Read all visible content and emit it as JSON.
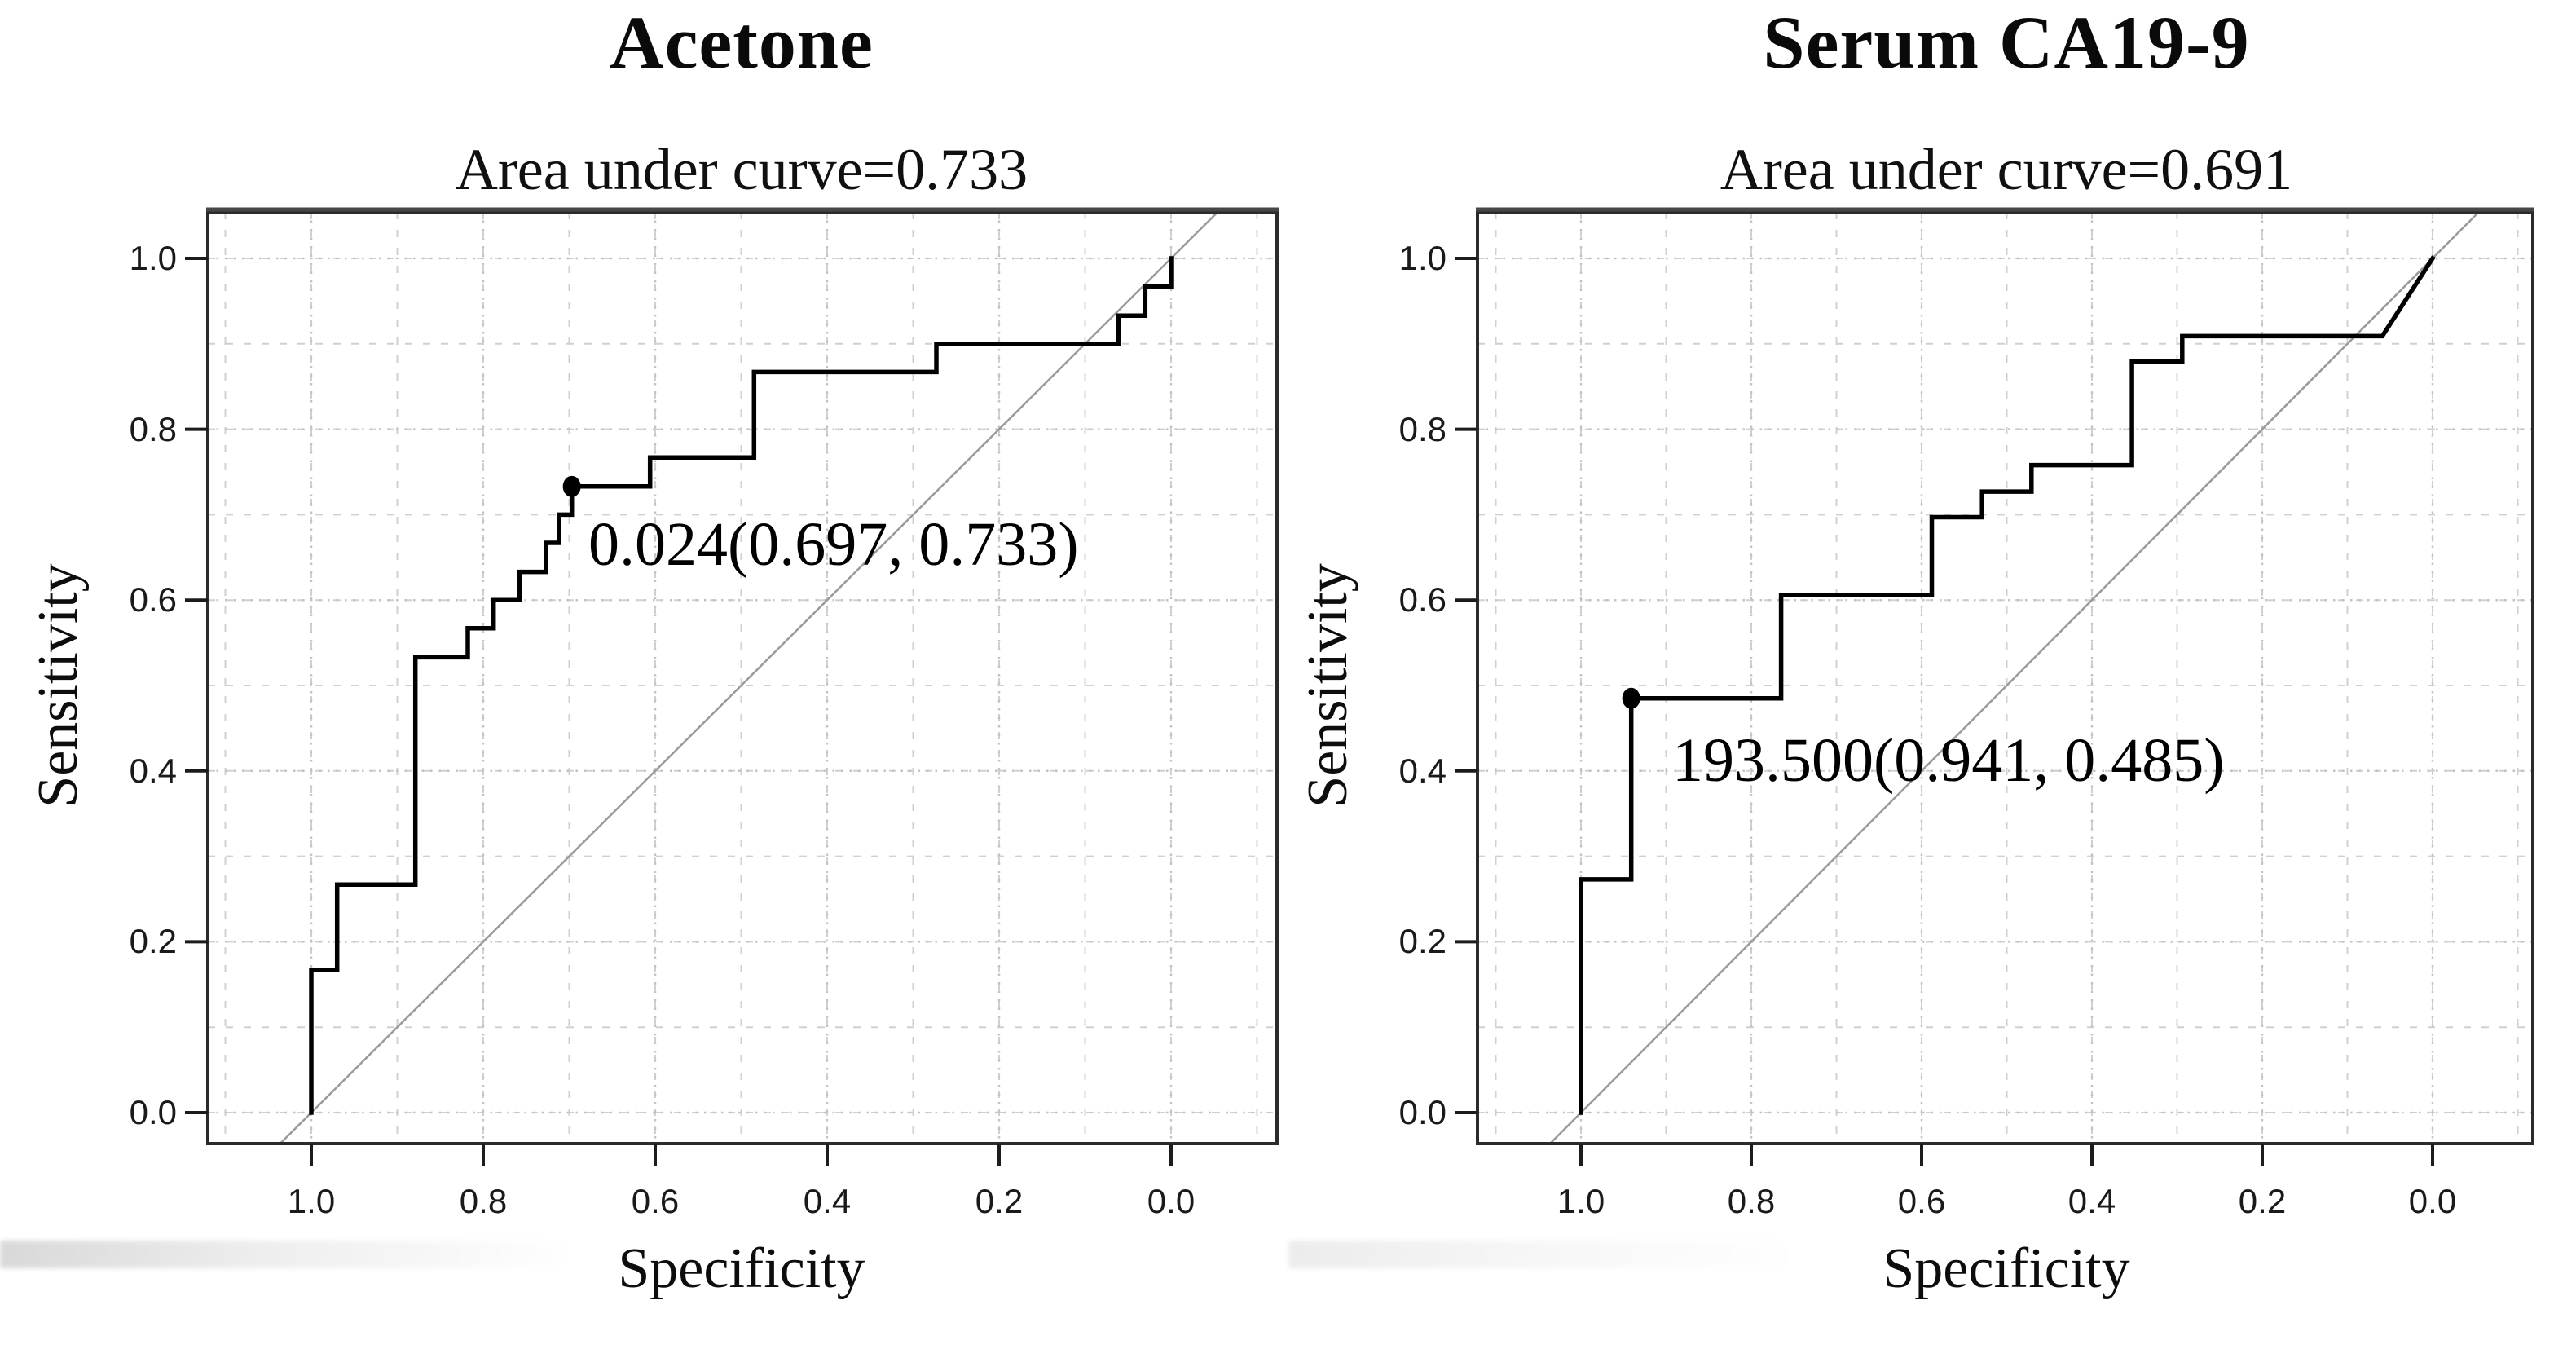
{
  "page": {
    "background": "#ffffff"
  },
  "colors": {
    "curve": "#000000",
    "diagonal": "#9a9a9a",
    "grid_minor": "#d0d0d0",
    "grid_major": "#c3c3c3",
    "box": "#2b2b2b",
    "tick": "#1c1c1c",
    "text": "#0d0d0d"
  },
  "chart_data": [
    {
      "type": "line",
      "chart_kind": "roc_curve",
      "title": "Acetone",
      "subtitle": "Area under curve=0.733",
      "auc": 0.733,
      "xlabel": "Specificity",
      "ylabel": "Sensitivity",
      "x_axis": {
        "reversed": true,
        "range": [
          1.0,
          0.0
        ],
        "ticks": [
          1.0,
          0.8,
          0.6,
          0.4,
          0.2,
          0.0
        ],
        "tick_labels": [
          "1.0",
          "0.8",
          "0.6",
          "0.4",
          "0.2",
          "0.0"
        ]
      },
      "y_axis": {
        "range": [
          0.0,
          1.0
        ],
        "ticks": [
          0.0,
          0.2,
          0.4,
          0.6,
          0.8,
          1.0
        ],
        "tick_labels": [
          "0.0",
          "0.2",
          "0.4",
          "0.6",
          "0.8",
          "1.0"
        ]
      },
      "grid": {
        "on": true,
        "minor_step": 0.1,
        "major_step": 0.2
      },
      "legend": "none",
      "reference_diagonal": true,
      "series": [
        {
          "name": "ROC curve",
          "color": "#000000",
          "points": [
            [
              1.0,
              0.0
            ],
            [
              1.0,
              0.167
            ],
            [
              0.97,
              0.167
            ],
            [
              0.97,
              0.267
            ],
            [
              0.879,
              0.267
            ],
            [
              0.879,
              0.533
            ],
            [
              0.818,
              0.533
            ],
            [
              0.818,
              0.567
            ],
            [
              0.788,
              0.567
            ],
            [
              0.788,
              0.6
            ],
            [
              0.758,
              0.6
            ],
            [
              0.758,
              0.633
            ],
            [
              0.727,
              0.633
            ],
            [
              0.727,
              0.667
            ],
            [
              0.712,
              0.667
            ],
            [
              0.712,
              0.7
            ],
            [
              0.697,
              0.7
            ],
            [
              0.697,
              0.733
            ],
            [
              0.606,
              0.733
            ],
            [
              0.606,
              0.767
            ],
            [
              0.485,
              0.767
            ],
            [
              0.485,
              0.867
            ],
            [
              0.273,
              0.867
            ],
            [
              0.273,
              0.9
            ],
            [
              0.061,
              0.9
            ],
            [
              0.061,
              0.933
            ],
            [
              0.03,
              0.933
            ],
            [
              0.03,
              0.967
            ],
            [
              0.0,
              0.967
            ],
            [
              0.0,
              1.0
            ]
          ]
        }
      ],
      "marked_point": {
        "label": "0.024(0.697, 0.733)",
        "threshold": "0.024",
        "specificity": 0.697,
        "sensitivity": 0.733
      }
    },
    {
      "type": "line",
      "chart_kind": "roc_curve",
      "title": "Serum CA19-9",
      "subtitle": "Area under curve=0.691",
      "auc": 0.691,
      "xlabel": "Specificity",
      "ylabel": "Sensitivity",
      "x_axis": {
        "reversed": true,
        "range": [
          1.0,
          0.0
        ],
        "ticks": [
          1.0,
          0.8,
          0.6,
          0.4,
          0.2,
          0.0
        ],
        "tick_labels": [
          "1.0",
          "0.8",
          "0.6",
          "0.4",
          "0.2",
          "0.0"
        ]
      },
      "y_axis": {
        "range": [
          0.0,
          1.0
        ],
        "ticks": [
          0.0,
          0.2,
          0.4,
          0.6,
          0.8,
          1.0
        ],
        "tick_labels": [
          "0.0",
          "0.2",
          "0.4",
          "0.6",
          "0.8",
          "1.0"
        ]
      },
      "grid": {
        "on": true,
        "minor_step": 0.1,
        "major_step": 0.2
      },
      "legend": "none",
      "reference_diagonal": true,
      "series": [
        {
          "name": "ROC curve",
          "color": "#000000",
          "points": [
            [
              1.0,
              0.0
            ],
            [
              1.0,
              0.273
            ],
            [
              0.941,
              0.273
            ],
            [
              0.941,
              0.485
            ],
            [
              0.765,
              0.485
            ],
            [
              0.765,
              0.606
            ],
            [
              0.588,
              0.606
            ],
            [
              0.588,
              0.697
            ],
            [
              0.529,
              0.697
            ],
            [
              0.529,
              0.727
            ],
            [
              0.471,
              0.727
            ],
            [
              0.471,
              0.758
            ],
            [
              0.353,
              0.758
            ],
            [
              0.353,
              0.879
            ],
            [
              0.294,
              0.879
            ],
            [
              0.294,
              0.909
            ],
            [
              0.059,
              0.909
            ],
            [
              0.0,
              1.0
            ]
          ]
        }
      ],
      "marked_point": {
        "label": "193.500(0.941, 0.485)",
        "threshold": "193.500",
        "specificity": 0.941,
        "sensitivity": 0.485
      }
    }
  ]
}
